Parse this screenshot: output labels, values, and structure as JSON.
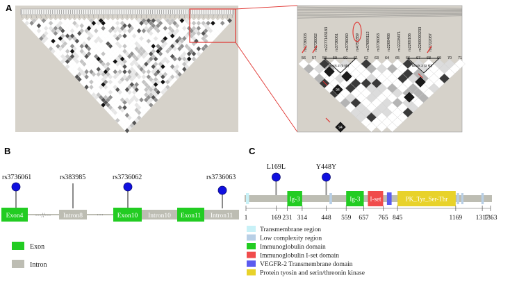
{
  "panel_a": {
    "letter": "A",
    "zoom_snps": [
      "rs1736003",
      "rs3736062",
      "rs2277143183",
      "rs3736061",
      "rs3736060",
      "rs4758359",
      "rs17698112",
      "rs3736063",
      "rs2269488",
      "rs12228471",
      "rs2269186",
      "rs2269090233",
      "rs2722087"
    ],
    "zoom_column_numbers": [
      "56",
      "57",
      "58",
      "59",
      "60",
      "61",
      "62",
      "63",
      "64",
      "65",
      "66",
      "67",
      "68",
      "69",
      "70",
      "71"
    ],
    "block_labels": [
      "Block 2 (0 kb)",
      "Block 3 (3 kb)"
    ],
    "cell_value": "94",
    "colors": {
      "background": "#d6d2ca",
      "highlight": "#e0332f"
    }
  },
  "panel_b": {
    "letter": "B",
    "snps": [
      {
        "id": "rs3736061",
        "label": "rs3736061"
      },
      {
        "id": "rs383985",
        "label": "rs383985"
      },
      {
        "id": "rs3736062",
        "label": "rs3736062"
      },
      {
        "id": "rs3736063",
        "label": "rs3736063"
      }
    ],
    "segments": [
      {
        "label": "Exon4",
        "kind": "exon"
      },
      {
        "label": "Intron8",
        "kind": "intron"
      },
      {
        "label": "Exon10",
        "kind": "exon"
      },
      {
        "label": "Intron10",
        "kind": "intron"
      },
      {
        "label": "Exon11",
        "kind": "exon"
      },
      {
        "label": "Intron11",
        "kind": "intron"
      }
    ],
    "break_mark": "···//···",
    "ellipsis": "···",
    "legend": [
      {
        "label": "Exon",
        "color": "#22cc22"
      },
      {
        "label": "Intron",
        "color": "#bdbdb3"
      }
    ]
  },
  "panel_c": {
    "letter": "C",
    "variants": [
      {
        "label": "L169L",
        "position": 169
      },
      {
        "label": "Y448Y",
        "position": 448
      }
    ],
    "protein_length": 1363,
    "domains": [
      {
        "label": "Ig-3",
        "start": 231,
        "end": 314,
        "type": "immunoglobulin"
      },
      {
        "label": "Ig-3",
        "start": 559,
        "end": 657,
        "type": "immunoglobulin"
      },
      {
        "label": "I-set",
        "start": 680,
        "end": 765,
        "type": "iset"
      },
      {
        "label": "",
        "start": 786,
        "end": 812,
        "type": "vegfr2"
      },
      {
        "label": "PK_Tyr_Ser-Thr",
        "start": 845,
        "end": 1169,
        "type": "kinase"
      }
    ],
    "small_regions": [
      {
        "start": 1,
        "end": 18,
        "type": "transmembrane"
      },
      {
        "start": 466,
        "end": 480,
        "type": "low_complexity"
      },
      {
        "start": 1175,
        "end": 1188,
        "type": "low_complexity"
      },
      {
        "start": 1200,
        "end": 1212,
        "type": "low_complexity"
      },
      {
        "start": 1312,
        "end": 1325,
        "type": "low_complexity"
      }
    ],
    "ticks": [
      "1",
      "169",
      "231",
      "314",
      "448",
      "559",
      "657",
      "765",
      "845",
      "1169",
      "1317",
      "1363"
    ],
    "legend": [
      {
        "label": "Transmembrane region",
        "color": "#c8f1f7"
      },
      {
        "label": "Low complexity region",
        "color": "#b8cfe6"
      },
      {
        "label": "Immunoglobulin domain",
        "color": "#22cc22"
      },
      {
        "label": "Immunoglobulin I-set domain",
        "color": "#f04c4c"
      },
      {
        "label": "VEGFR-2 Transmembrane domain",
        "color": "#5b5bef"
      },
      {
        "label": "Protein tyosin and serin/threonin kinase",
        "color": "#e8d22a"
      }
    ]
  }
}
